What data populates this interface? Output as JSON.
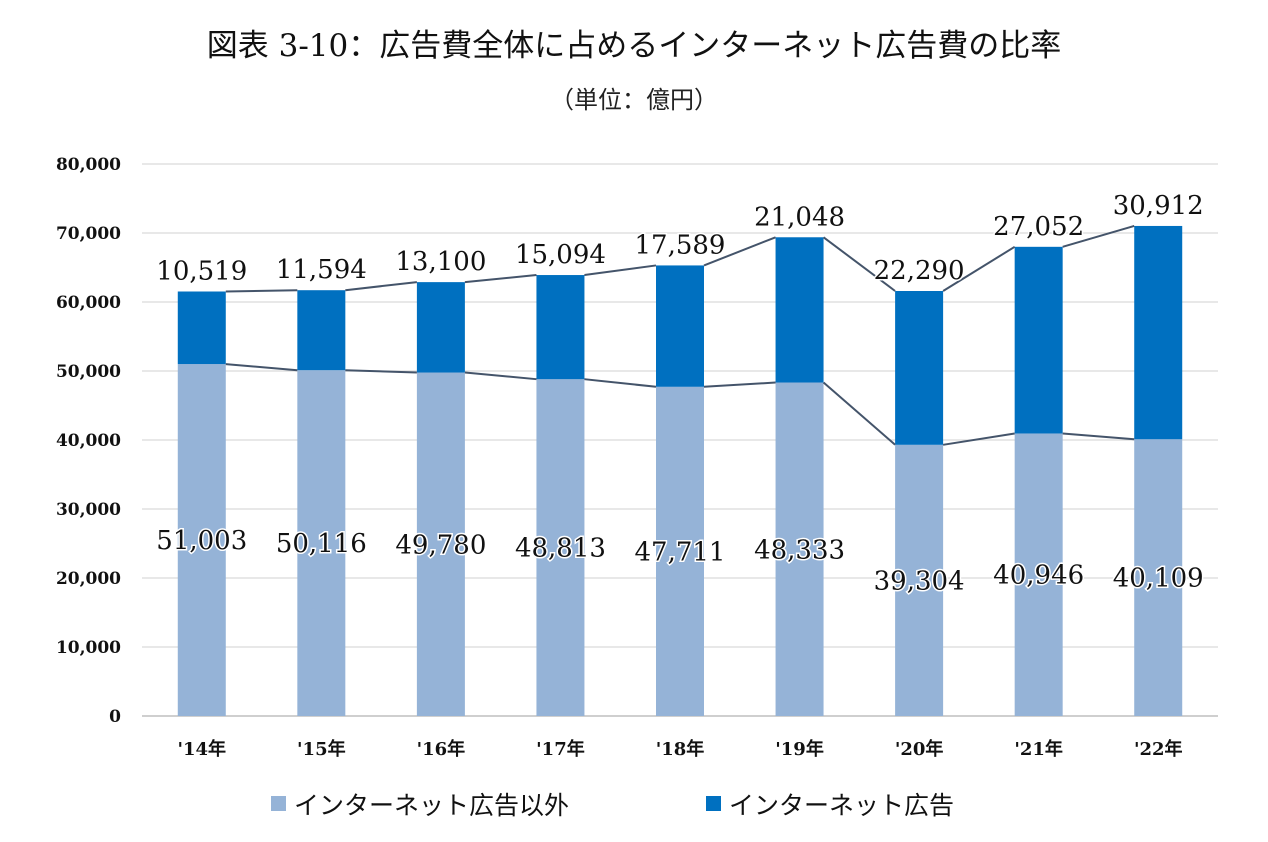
{
  "chart_data": {
    "type": "bar",
    "stacked": true,
    "title": "図表 3-10：広告費全体に占めるインターネット広告費の比率",
    "subtitle": "（単位：億円）",
    "categories": [
      "'14年",
      "'15年",
      "'16年",
      "'17年",
      "'18年",
      "'19年",
      "'20年",
      "'21年",
      "'22年"
    ],
    "series": [
      {
        "name": "インターネット広告以外",
        "values": [
          51003,
          50116,
          49780,
          48813,
          47711,
          48333,
          39304,
          40946,
          40109
        ],
        "labels": [
          "51,003",
          "50,116",
          "49,780",
          "48,813",
          "47,711",
          "48,333",
          "39,304",
          "40,946",
          "40,109"
        ],
        "color": "#95b3d7"
      },
      {
        "name": "インターネット広告",
        "values": [
          10519,
          11594,
          13100,
          15094,
          17589,
          21048,
          22290,
          27052,
          30912
        ],
        "labels": [
          "10,519",
          "11,594",
          "13,100",
          "15,094",
          "17,589",
          "21,048",
          "22,290",
          "27,052",
          "30,912"
        ],
        "color": "#0070c0"
      }
    ],
    "ylim": [
      0,
      80000
    ],
    "yticks": [
      0,
      10000,
      20000,
      30000,
      40000,
      50000,
      60000,
      70000,
      80000
    ],
    "ytick_labels": [
      "0",
      "10,000",
      "20,000",
      "30,000",
      "40,000",
      "50,000",
      "60,000",
      "70,000",
      "80,000"
    ],
    "grid": true,
    "series_lines": true,
    "legend_position": "bottom",
    "connector_color": "#44546a"
  }
}
